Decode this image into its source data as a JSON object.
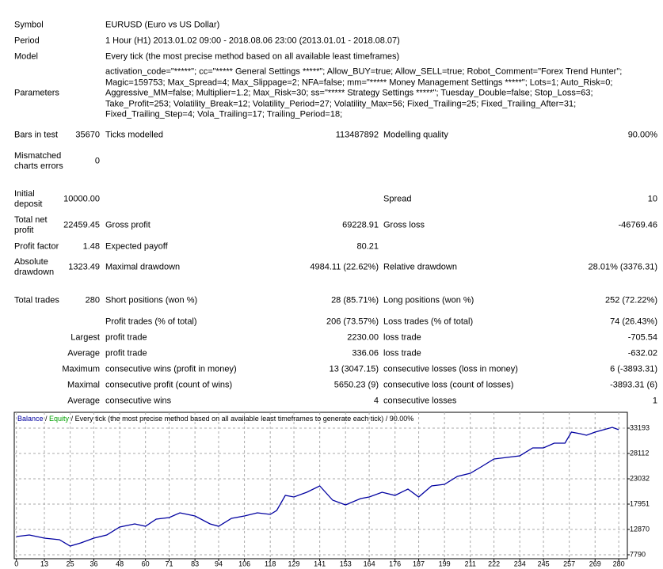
{
  "info": [
    {
      "label": "Symbol",
      "value": [
        "EURUSD (Euro vs US Dollar)"
      ]
    },
    {
      "label": "Period",
      "value": [
        "1 Hour (H1) 2013.01.02 09:00 - 2018.08.06 23:00 (2013.01.01 - 2018.08.07)"
      ]
    },
    {
      "label": "Model",
      "value": [
        "Every tick (the most precise method based on all available least timeframes)"
      ]
    },
    {
      "label": "Parameters",
      "value": [
        "activation_code=\"*****\"; cc=\"***** General Settings *****\"; Allow_BUY=true; Allow_SELL=true; Robot_Comment=\"Forex Trend Hunter\";",
        "Magic=159753; Max_Spread=4; Max_Slippage=2; NFA=false; mm=\"***** Money Management Settings *****\"; Lots=1; Auto_Risk=0;",
        "Aggressive_MM=false; Multiplier=1.2; Max_Risk=30; ss=\"***** Strategy Settings *****\"; Tuesday_Double=false; Stop_Loss=63;",
        "Take_Profit=253; Volatility_Break=12; Volatility_Period=27; Volatility_Max=56; Fixed_Trailing=25; Fixed_Trailing_After=31;",
        "Fixed_Trailing_Step=4; Vola_Trailing=17; Trailing_Period=18;"
      ]
    }
  ],
  "stats": [
    [
      "Bars in test",
      "35670",
      "Ticks modelled",
      "113487892",
      "Modelling quality",
      "90.00%"
    ],
    [
      "Mismatched charts errors",
      "0",
      null,
      null,
      null,
      null
    ],
    [
      "Initial deposit",
      "10000.00",
      null,
      null,
      "Spread",
      "10"
    ],
    [
      "Total net profit",
      "22459.45",
      "Gross profit",
      "69228.91",
      "Gross loss",
      "-46769.46"
    ],
    [
      "Profit factor",
      "1.48",
      "Expected payoff",
      "80.21",
      null,
      null
    ],
    [
      "Absolute drawdown",
      "1323.49",
      "Maximal drawdown",
      "4984.11 (22.62%)",
      "Relative drawdown",
      "28.01% (3376.31)"
    ],
    [
      "Total trades",
      "280",
      "Short positions (won %)",
      "28 (85.71%)",
      "Long positions (won %)",
      "252 (72.22%)"
    ],
    [
      null,
      null,
      "Profit trades (% of total)",
      "206 (73.57%)",
      "Loss trades (% of total)",
      "74 (26.43%)"
    ],
    [
      null,
      "Largest",
      "profit trade",
      "2230.00",
      "loss trade",
      "-705.54"
    ],
    [
      null,
      "Average",
      "profit trade",
      "336.06",
      "loss trade",
      "-632.02"
    ],
    [
      null,
      "Maximum",
      "consecutive wins (profit in money)",
      "13 (3047.15)",
      "consecutive losses (loss in money)",
      "6 (-3893.31)"
    ],
    [
      null,
      "Maximal",
      "consecutive profit (count of wins)",
      "5650.23 (9)",
      "consecutive loss (count of losses)",
      "-3893.31 (6)"
    ],
    [
      null,
      "Average",
      "consecutive wins",
      "4",
      "consecutive losses",
      "1"
    ]
  ],
  "chart_data": {
    "type": "line",
    "title": "Every tick (the most precise method based on all available least timeframes to generate each tick) / 90.00%",
    "separator": " / ",
    "equity_legend": {
      "name": "Equity",
      "color": "#00a000"
    },
    "x": [
      0,
      6,
      13,
      20,
      25,
      30,
      36,
      42,
      48,
      55,
      60,
      65,
      71,
      76,
      83,
      90,
      94,
      100,
      106,
      112,
      118,
      121,
      125,
      129,
      135,
      141,
      147,
      153,
      160,
      164,
      170,
      176,
      182,
      187,
      193,
      199,
      205,
      211,
      216,
      222,
      228,
      234,
      240,
      245,
      250,
      255,
      258,
      262,
      265,
      269,
      273,
      277,
      280
    ],
    "series": [
      {
        "name": "Balance",
        "color": "#0000a0",
        "values": [
          11442,
          11760,
          11124,
          10807,
          9537,
          10172,
          11124,
          11760,
          13347,
          13982,
          13506,
          14935,
          15253,
          16205,
          15570,
          13982,
          13506,
          15094,
          15570,
          16205,
          15888,
          16682,
          19699,
          19381,
          20334,
          21604,
          18746,
          17793,
          19063,
          19381,
          20334,
          19699,
          20969,
          19381,
          21604,
          21921,
          23509,
          24144,
          25415,
          27002,
          27320,
          27638,
          29225,
          29225,
          30178,
          30178,
          32401,
          32083,
          31766,
          32401,
          32877,
          33354,
          32877
        ]
      }
    ],
    "xlim": [
      -1,
      284
    ],
    "ylim": [
      6996,
      36370
    ],
    "xticks": [
      0,
      13,
      25,
      36,
      48,
      60,
      71,
      83,
      94,
      106,
      118,
      129,
      141,
      153,
      164,
      176,
      187,
      199,
      211,
      222,
      234,
      245,
      257,
      269,
      280
    ],
    "yticks": [
      33193,
      28112,
      23032,
      17951,
      12870,
      7790
    ],
    "grid": true
  }
}
